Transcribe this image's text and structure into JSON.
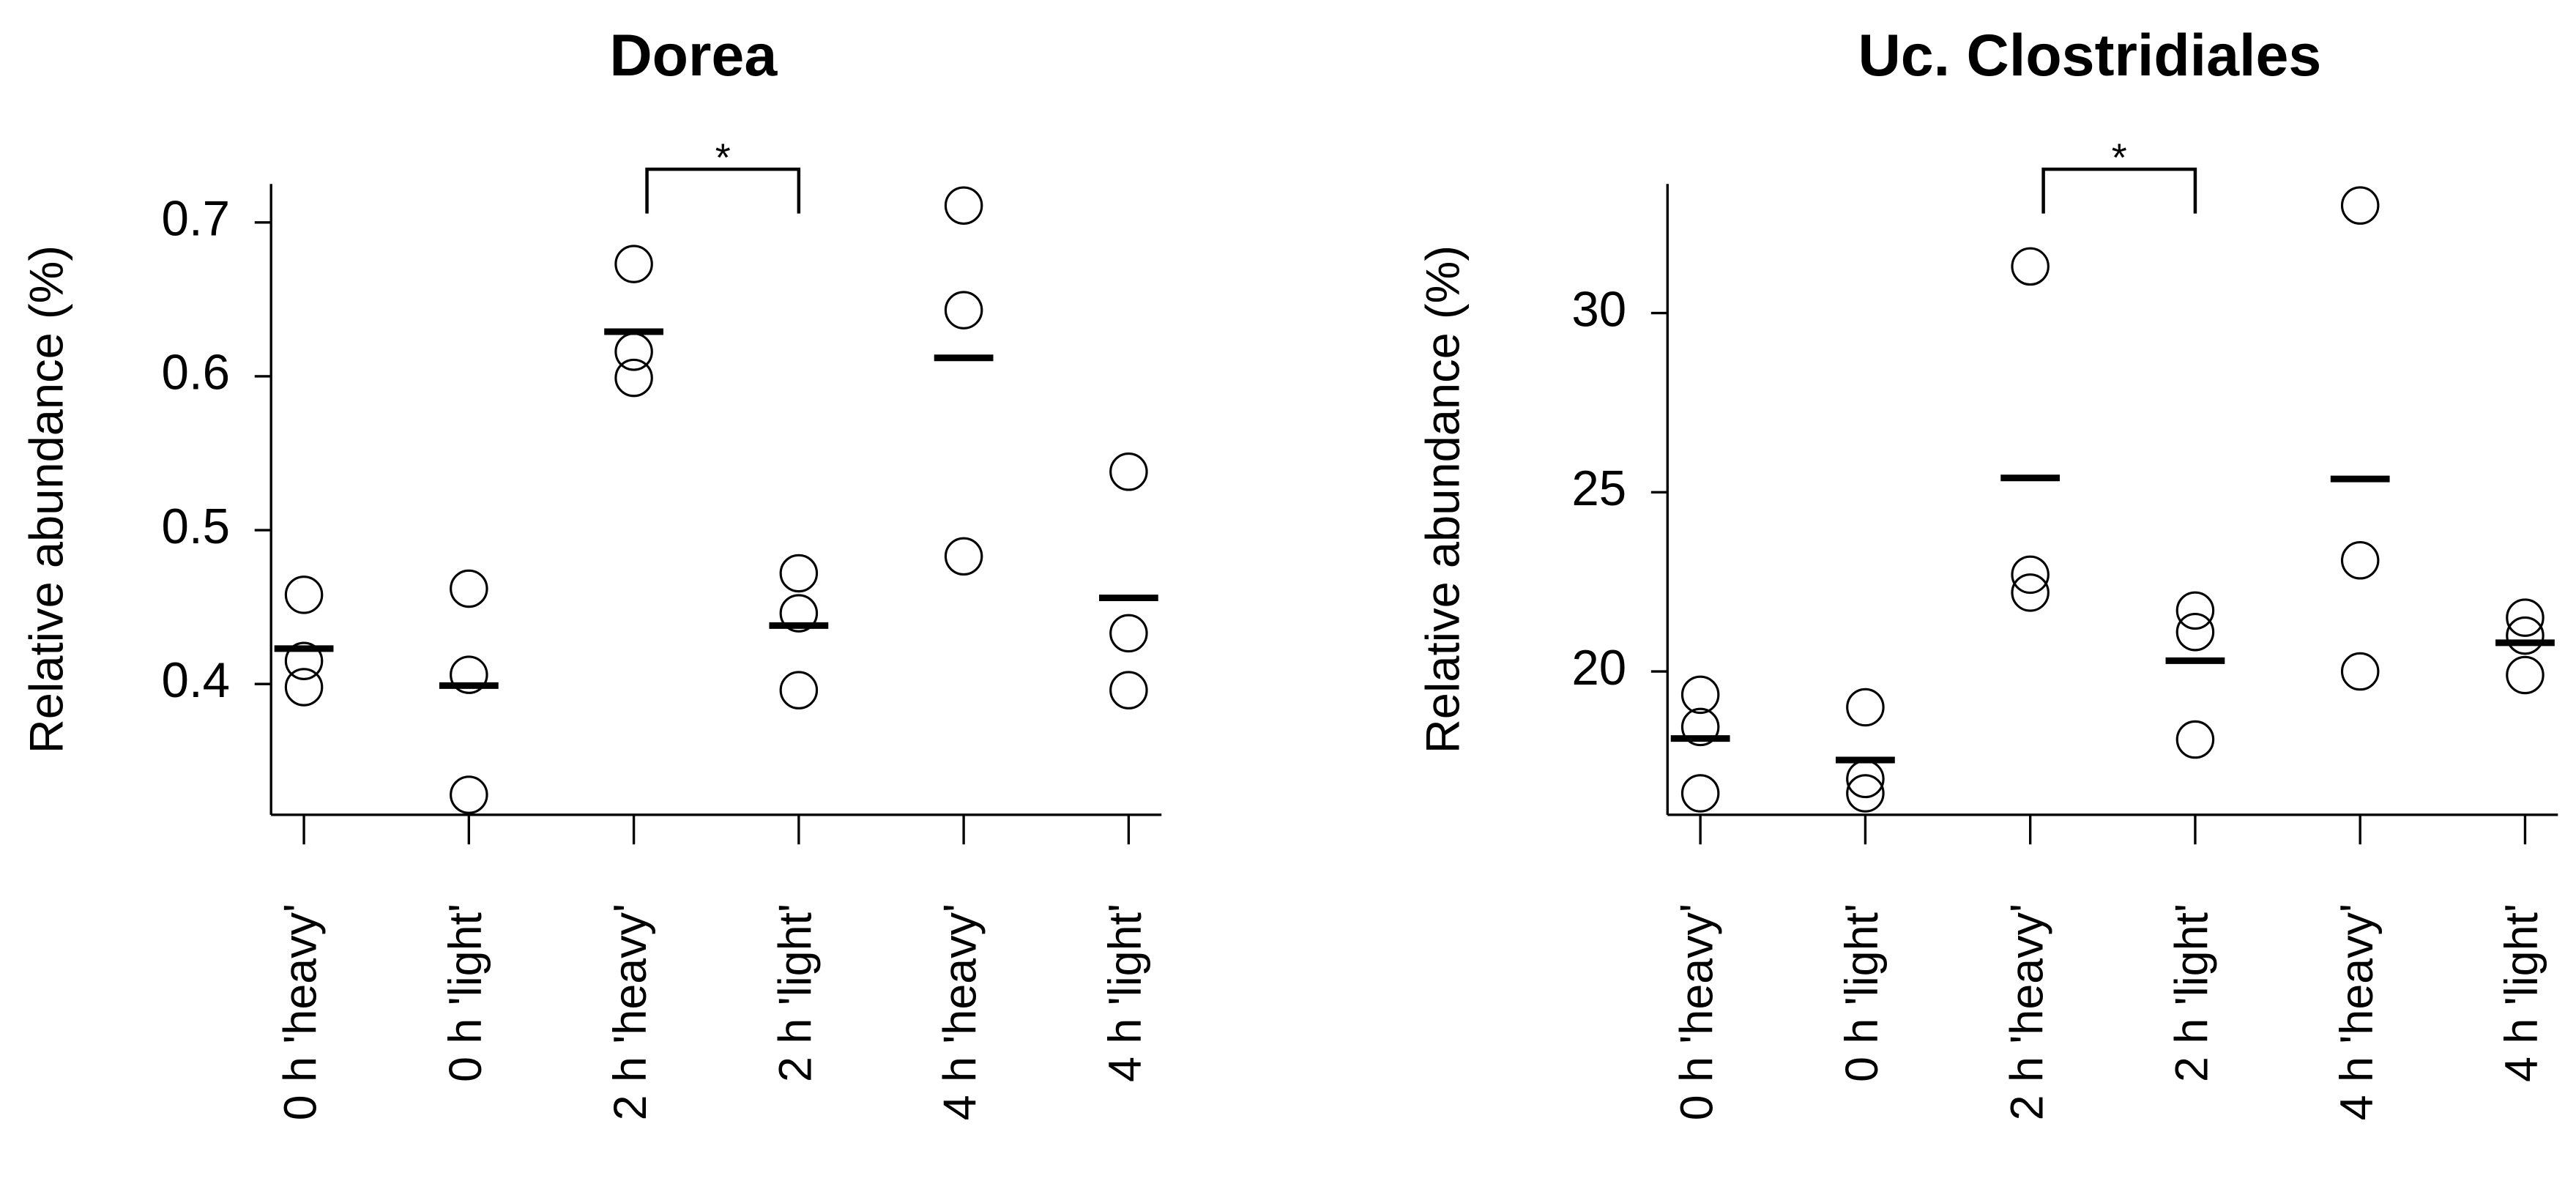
{
  "chart_data": [
    {
      "type": "strip",
      "title": "Dorea",
      "ylabel": "Relative abundance (%)",
      "categories": [
        "0 h 'heavy'",
        "0 h 'light'",
        "2 h 'heavy'",
        "2 h 'light'",
        "4 h 'heavy'",
        "4 h 'light'"
      ],
      "values": [
        [
          0.458,
          0.415,
          0.398
        ],
        [
          0.462,
          0.406,
          0.328
        ],
        [
          0.673,
          0.616,
          0.599
        ],
        [
          0.472,
          0.446,
          0.396
        ],
        [
          0.711,
          0.643,
          0.483
        ],
        [
          0.538,
          0.433,
          0.396
        ]
      ],
      "means": [
        0.423,
        0.399,
        0.629,
        0.438,
        0.612,
        0.456
      ],
      "ylim": [
        0.315,
        0.725
      ],
      "yticks": [
        0.4,
        0.5,
        0.6,
        0.7
      ],
      "significance": [
        {
          "label": "*",
          "categories": [
            2,
            3
          ]
        }
      ]
    },
    {
      "type": "strip",
      "title": "Uc. Clostridiales",
      "ylabel": "Relative abundance (%)",
      "categories": [
        "0 h 'heavy'",
        "0 h 'light'",
        "2 h 'heavy'",
        "2 h 'light'",
        "4 h 'heavy'",
        "4 h 'light'"
      ],
      "values": [
        [
          19.35,
          18.45,
          16.6
        ],
        [
          19.0,
          17.0,
          16.6
        ],
        [
          31.3,
          22.7,
          22.2
        ],
        [
          21.7,
          21.1,
          18.1
        ],
        [
          33.0,
          23.1,
          20.0
        ],
        [
          21.5,
          21.0,
          19.9
        ]
      ],
      "means": [
        18.13,
        17.53,
        25.4,
        20.3,
        25.37,
        20.8
      ],
      "ylim": [
        16.0,
        33.6
      ],
      "yticks": [
        20,
        25,
        30
      ],
      "significance": [
        {
          "label": "*",
          "categories": [
            2,
            3
          ]
        }
      ]
    }
  ]
}
